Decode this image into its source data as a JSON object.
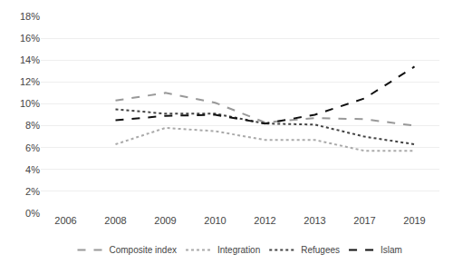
{
  "chart_data": {
    "type": "line",
    "categories": [
      "2006",
      "2008",
      "2009",
      "2010",
      "2012",
      "2013",
      "2017",
      "2019"
    ],
    "series": [
      {
        "name": "Composite index",
        "color": "#999999",
        "line_style": "dashed",
        "values": [
          null,
          10.3,
          11.0,
          10.1,
          8.3,
          8.7,
          8.6,
          8.0
        ]
      },
      {
        "name": "Integration",
        "color": "#aaaaaa",
        "line_style": "dotted",
        "values": [
          null,
          6.3,
          7.8,
          7.5,
          6.7,
          6.7,
          5.7,
          5.7
        ]
      },
      {
        "name": "Refugees",
        "color": "#444444",
        "line_style": "dotted",
        "values": [
          null,
          9.5,
          9.1,
          9.1,
          8.2,
          8.1,
          7.0,
          6.3
        ]
      },
      {
        "name": "Islam",
        "color": "#111111",
        "line_style": "dashed",
        "values": [
          null,
          8.5,
          8.9,
          9.0,
          8.2,
          9.0,
          10.5,
          13.4
        ]
      }
    ],
    "ylim": [
      0,
      18
    ],
    "yticks": [
      {
        "value": 0,
        "label": "0%"
      },
      {
        "value": 2,
        "label": "2%"
      },
      {
        "value": 4,
        "label": "4%"
      },
      {
        "value": 6,
        "label": "6%"
      },
      {
        "value": 8,
        "label": "8%"
      },
      {
        "value": 10,
        "label": "10%"
      },
      {
        "value": 12,
        "label": "12%"
      },
      {
        "value": 14,
        "label": "14%"
      },
      {
        "value": 16,
        "label": "16%"
      },
      {
        "value": 18,
        "label": "18%"
      }
    ],
    "grid": true,
    "legend": "bottom"
  }
}
